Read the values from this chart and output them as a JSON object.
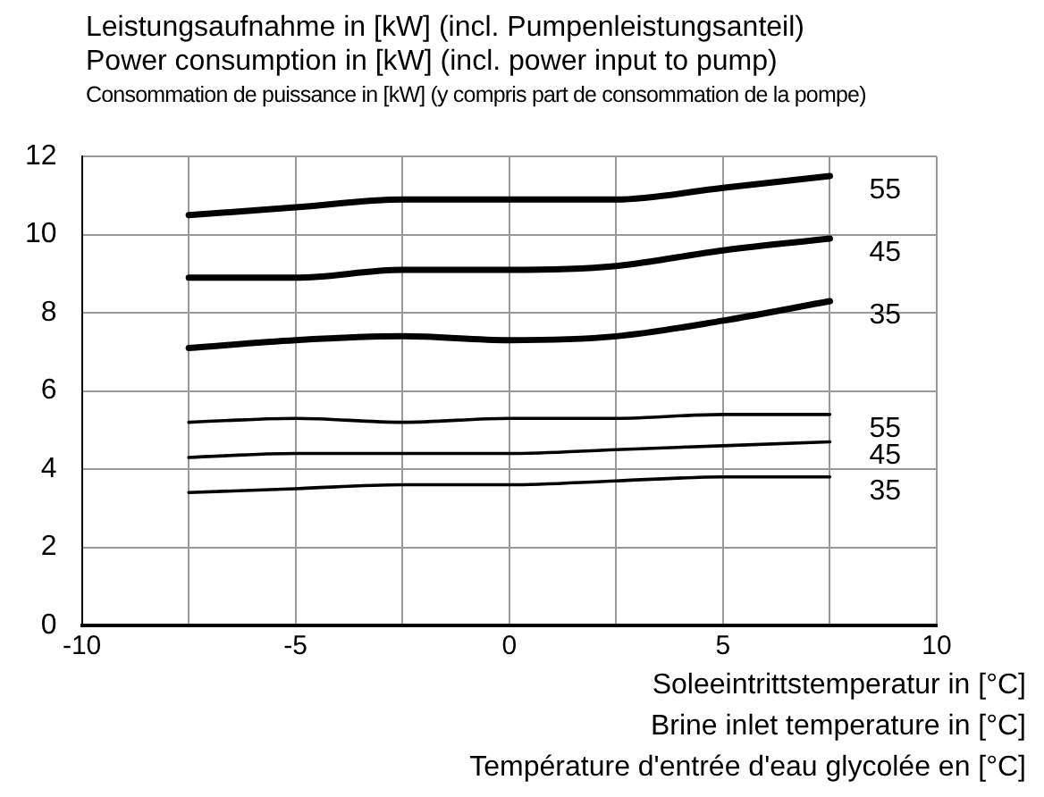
{
  "chart_data": {
    "type": "line",
    "ylabel": "Leistungsaufnahme in [kW] (incl. Pumpenleistungsanteil)\nPower consumption in [kW] (incl. power input to pump)\nConsommation de puissance in [kW] (y compris part de consommation de la pompe)",
    "xlabel": "Soleeintrittstemperatur in [°C]\nBrine inlet temperature in [°C]\nTempérature d'entrée d'eau glycolée en [°C]",
    "x": [
      -7.5,
      -5,
      -2.5,
      0,
      2.5,
      5,
      7.5
    ],
    "series": [
      {
        "name": "55",
        "color": "#000000",
        "values": [
          10.5,
          10.7,
          10.9,
          10.9,
          10.9,
          11.2,
          11.5
        ]
      },
      {
        "name": "45",
        "color": "#000000",
        "values": [
          8.9,
          8.9,
          9.1,
          9.1,
          9.2,
          9.6,
          9.9
        ]
      },
      {
        "name": "35",
        "color": "#000000",
        "values": [
          7.1,
          7.3,
          7.4,
          7.3,
          7.4,
          7.8,
          8.3
        ]
      },
      {
        "name": "55",
        "color": "#000000",
        "values": [
          5.2,
          5.3,
          5.2,
          5.3,
          5.3,
          5.4,
          5.4
        ]
      },
      {
        "name": "45",
        "color": "#000000",
        "values": [
          4.3,
          4.4,
          4.4,
          4.4,
          4.5,
          4.6,
          4.7
        ]
      },
      {
        "name": "35",
        "color": "#000000",
        "values": [
          3.4,
          3.5,
          3.6,
          3.6,
          3.7,
          3.8,
          3.8
        ]
      }
    ],
    "xlim": [
      -10,
      10
    ],
    "xticks": [
      -10,
      {
        "value": -7.5,
        "label": null
      },
      -5,
      {
        "value": -2.5,
        "label": null
      },
      0,
      {
        "value": 2.5,
        "label": null
      },
      5,
      {
        "value": 7.5,
        "label": null
      },
      10
    ],
    "ylim": [
      0,
      12
    ],
    "yticks": [
      0,
      2,
      4,
      6,
      8,
      10,
      12
    ],
    "grid": true,
    "legend": false,
    "marker": "none",
    "line_style": "solid"
  }
}
